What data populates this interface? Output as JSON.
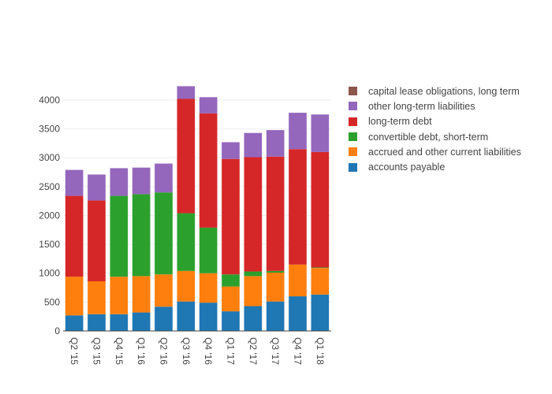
{
  "chart_data": {
    "type": "bar",
    "stacked": true,
    "title": "",
    "xlabel": "",
    "ylabel": "",
    "ylim": [
      0,
      4300
    ],
    "yticks": [
      0,
      500,
      1000,
      1500,
      2000,
      2500,
      3000,
      3500,
      4000
    ],
    "ytick_labels": [
      "0",
      "500",
      "1000",
      "1500",
      "2000",
      "2500",
      "3000",
      "3500",
      "4000"
    ],
    "grid": true,
    "legend_position": "right",
    "categories": [
      "Q2 '15",
      "Q3 '15",
      "Q4 '15",
      "Q1 '16",
      "Q2 '16",
      "Q3 '16",
      "Q4 '16",
      "Q1 '17",
      "Q2 '17",
      "Q3 '17",
      "Q4 '17",
      "Q1 '18"
    ],
    "series": [
      {
        "name": "accounts payable",
        "color": "#1f77b4",
        "values": [
          270,
          290,
          290,
          320,
          420,
          510,
          490,
          340,
          430,
          510,
          600,
          630
        ]
      },
      {
        "name": "accrued and other current liabilities",
        "color": "#ff7f0e",
        "values": [
          670,
          570,
          650,
          630,
          560,
          530,
          510,
          430,
          520,
          500,
          550,
          460
        ]
      },
      {
        "name": "convertible debt, short-term",
        "color": "#2ca02c",
        "values": [
          0,
          0,
          1400,
          1420,
          1420,
          1000,
          790,
          210,
          80,
          30,
          0,
          10
        ]
      },
      {
        "name": "long-term debt",
        "color": "#d62728",
        "values": [
          1400,
          1400,
          0,
          0,
          0,
          1980,
          1980,
          2000,
          1980,
          1980,
          2000,
          2000
        ]
      },
      {
        "name": "other long-term liabilities",
        "color": "#9467bd",
        "values": [
          450,
          450,
          480,
          460,
          500,
          220,
          280,
          290,
          420,
          460,
          630,
          650
        ]
      },
      {
        "name": "capital lease obligations, long term",
        "color": "#8c564b",
        "values": [
          0,
          0,
          0,
          0,
          0,
          0,
          0,
          0,
          0,
          0,
          0,
          0
        ]
      }
    ],
    "legend_order": [
      5,
      4,
      3,
      2,
      1,
      0
    ]
  }
}
